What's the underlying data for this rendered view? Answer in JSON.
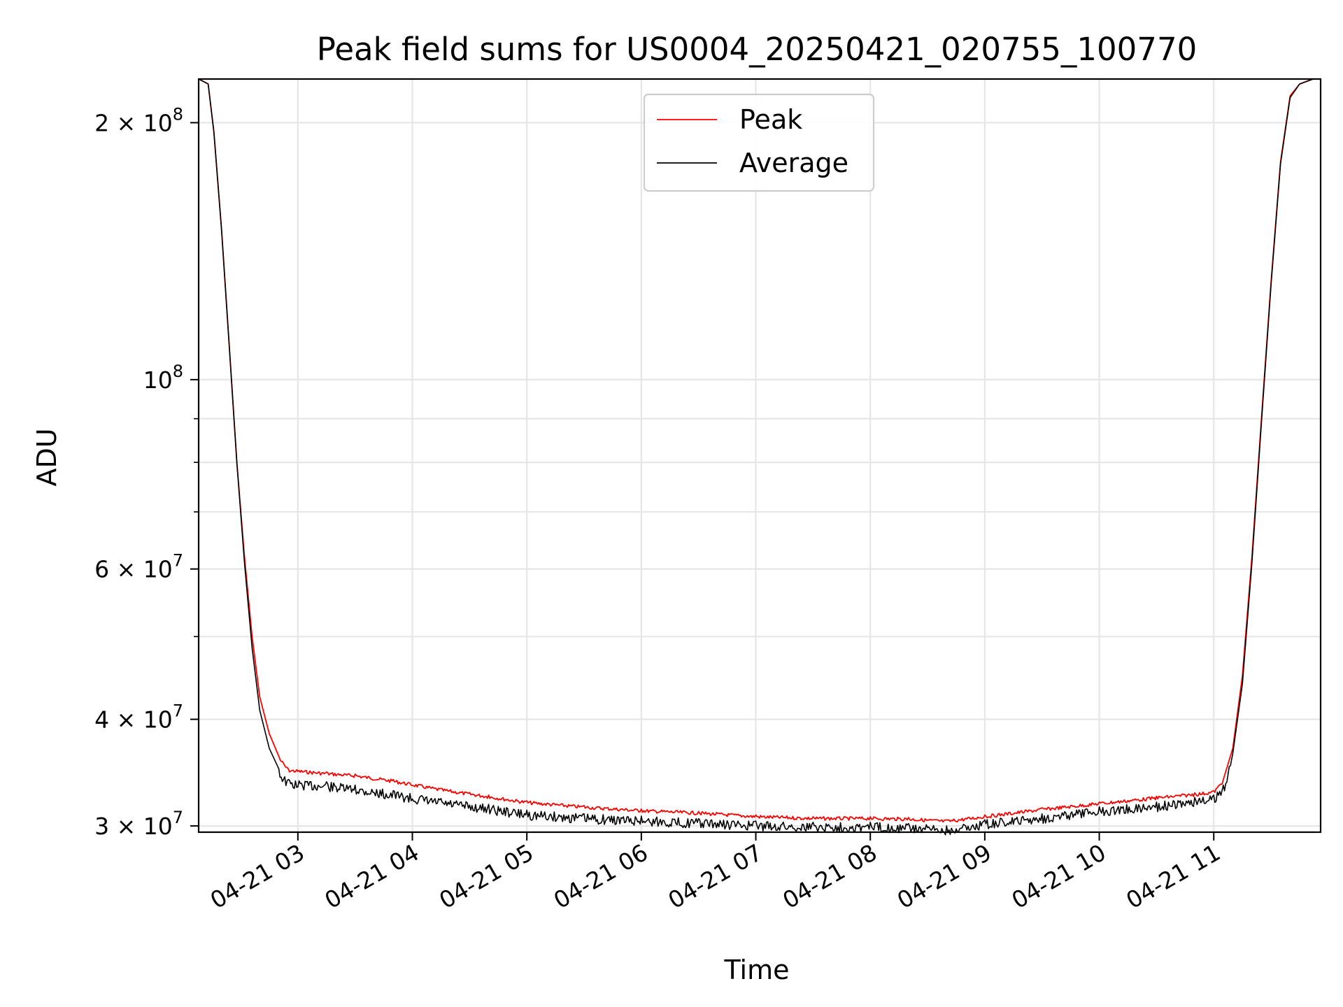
{
  "chart_data": {
    "type": "line",
    "title": "Peak field sums for US0004_20250421_020755_100770",
    "xlabel": "Time",
    "ylabel": "ADU",
    "yscale": "log",
    "ylim": [
      29500000,
      225000000
    ],
    "xlim": [
      "2025-04-21 02:08",
      "2025-04-21 11:56"
    ],
    "grid": true,
    "legend_position": "upper-center",
    "x_ticks": [
      {
        "label": "04-21 03",
        "t": "2025-04-21 03:00"
      },
      {
        "label": "04-21 04",
        "t": "2025-04-21 04:00"
      },
      {
        "label": "04-21 05",
        "t": "2025-04-21 05:00"
      },
      {
        "label": "04-21 06",
        "t": "2025-04-21 06:00"
      },
      {
        "label": "04-21 07",
        "t": "2025-04-21 07:00"
      },
      {
        "label": "04-21 08",
        "t": "2025-04-21 08:00"
      },
      {
        "label": "04-21 09",
        "t": "2025-04-21 09:00"
      },
      {
        "label": "04-21 10",
        "t": "2025-04-21 10:00"
      },
      {
        "label": "04-21 11",
        "t": "2025-04-21 11:00"
      }
    ],
    "y_ticks": [
      {
        "value": 30000000,
        "mantissa": "3",
        "exponent": "7"
      },
      {
        "value": 40000000,
        "mantissa": "4",
        "exponent": "7"
      },
      {
        "value": 60000000,
        "mantissa": "6",
        "exponent": "7"
      },
      {
        "value": 100000000,
        "mantissa": "",
        "exponent": "8"
      },
      {
        "value": 200000000,
        "mantissa": "2",
        "exponent": "8"
      }
    ],
    "y_minor_ticks": [
      50000000,
      70000000,
      80000000,
      90000000
    ],
    "series": [
      {
        "name": "Peak",
        "color": "#ff0000",
        "points": [
          [
            "2025-04-21 02:08",
            225000000
          ],
          [
            "2025-04-21 02:13",
            222000000
          ],
          [
            "2025-04-21 02:16",
            195000000
          ],
          [
            "2025-04-21 02:20",
            150000000
          ],
          [
            "2025-04-21 02:24",
            110000000
          ],
          [
            "2025-04-21 02:28",
            80000000
          ],
          [
            "2025-04-21 02:32",
            62000000
          ],
          [
            "2025-04-21 02:36",
            50000000
          ],
          [
            "2025-04-21 02:40",
            42500000
          ],
          [
            "2025-04-21 02:45",
            38500000
          ],
          [
            "2025-04-21 02:50",
            36200000
          ],
          [
            "2025-04-21 02:55",
            35000000
          ],
          [
            "2025-04-21 03:15",
            34700000
          ],
          [
            "2025-04-21 03:30",
            34500000
          ],
          [
            "2025-04-21 03:50",
            34000000
          ],
          [
            "2025-04-21 04:15",
            33200000
          ],
          [
            "2025-04-21 04:40",
            32600000
          ],
          [
            "2025-04-21 05:00",
            32100000
          ],
          [
            "2025-04-21 05:30",
            31700000
          ],
          [
            "2025-04-21 06:00",
            31400000
          ],
          [
            "2025-04-21 06:30",
            31200000
          ],
          [
            "2025-04-21 07:00",
            30900000
          ],
          [
            "2025-04-21 07:30",
            30750000
          ],
          [
            "2025-04-21 08:00",
            30750000
          ],
          [
            "2025-04-21 08:20",
            30700000
          ],
          [
            "2025-04-21 08:40",
            30500000
          ],
          [
            "2025-04-21 09:00",
            30900000
          ],
          [
            "2025-04-21 09:30",
            31500000
          ],
          [
            "2025-04-21 10:00",
            32000000
          ],
          [
            "2025-04-21 10:30",
            32500000
          ],
          [
            "2025-04-21 10:50",
            32800000
          ],
          [
            "2025-04-21 11:00",
            33000000
          ],
          [
            "2025-04-21 11:05",
            34000000
          ],
          [
            "2025-04-21 11:10",
            37000000
          ],
          [
            "2025-04-21 11:15",
            45000000
          ],
          [
            "2025-04-21 11:20",
            62000000
          ],
          [
            "2025-04-21 11:25",
            90000000
          ],
          [
            "2025-04-21 11:30",
            130000000
          ],
          [
            "2025-04-21 11:35",
            180000000
          ],
          [
            "2025-04-21 11:40",
            215000000
          ],
          [
            "2025-04-21 11:45",
            222000000
          ],
          [
            "2025-04-21 11:52",
            225000000
          ]
        ]
      },
      {
        "name": "Average",
        "color": "#000000",
        "points": [
          [
            "2025-04-21 02:08",
            225000000
          ],
          [
            "2025-04-21 02:13",
            222000000
          ],
          [
            "2025-04-21 02:16",
            195000000
          ],
          [
            "2025-04-21 02:20",
            150000000
          ],
          [
            "2025-04-21 02:24",
            110000000
          ],
          [
            "2025-04-21 02:28",
            80000000
          ],
          [
            "2025-04-21 02:32",
            61000000
          ],
          [
            "2025-04-21 02:36",
            48500000
          ],
          [
            "2025-04-21 02:40",
            41000000
          ],
          [
            "2025-04-21 02:45",
            37000000
          ],
          [
            "2025-04-21 02:50",
            35000000
          ],
          [
            "2025-04-21 02:55",
            34000000
          ],
          [
            "2025-04-21 03:15",
            33800000
          ],
          [
            "2025-04-21 03:30",
            33500000
          ],
          [
            "2025-04-21 03:50",
            33000000
          ],
          [
            "2025-04-21 04:15",
            32300000
          ],
          [
            "2025-04-21 04:40",
            31800000
          ],
          [
            "2025-04-21 05:00",
            31300000
          ],
          [
            "2025-04-21 05:30",
            31000000
          ],
          [
            "2025-04-21 06:00",
            30800000
          ],
          [
            "2025-04-21 06:30",
            30600000
          ],
          [
            "2025-04-21 07:00",
            30400000
          ],
          [
            "2025-04-21 07:30",
            30300000
          ],
          [
            "2025-04-21 08:00",
            30300000
          ],
          [
            "2025-04-21 08:20",
            30200000
          ],
          [
            "2025-04-21 08:40",
            30000000
          ],
          [
            "2025-04-21 09:00",
            30500000
          ],
          [
            "2025-04-21 09:30",
            31000000
          ],
          [
            "2025-04-21 10:00",
            31600000
          ],
          [
            "2025-04-21 10:30",
            32000000
          ],
          [
            "2025-04-21 10:50",
            32400000
          ],
          [
            "2025-04-21 11:00",
            32600000
          ],
          [
            "2025-04-21 11:05",
            33500000
          ],
          [
            "2025-04-21 11:10",
            36500000
          ],
          [
            "2025-04-21 11:15",
            44000000
          ],
          [
            "2025-04-21 11:20",
            61000000
          ],
          [
            "2025-04-21 11:25",
            89000000
          ],
          [
            "2025-04-21 11:30",
            129000000
          ],
          [
            "2025-04-21 11:35",
            179000000
          ],
          [
            "2025-04-21 11:40",
            214000000
          ],
          [
            "2025-04-21 11:45",
            222000000
          ],
          [
            "2025-04-21 11:52",
            225000000
          ]
        ]
      }
    ]
  }
}
